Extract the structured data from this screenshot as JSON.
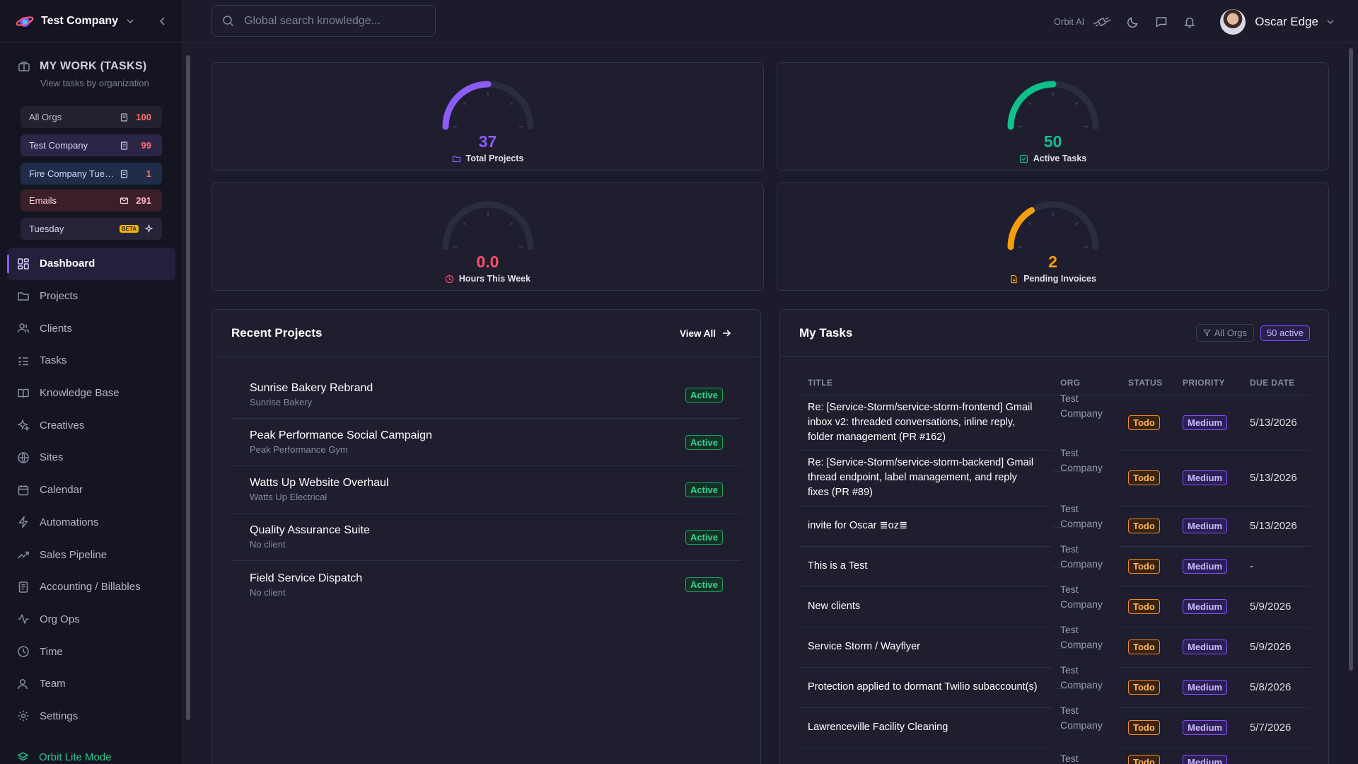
{
  "sidebar": {
    "company": "Test Company",
    "my_work": {
      "title": "MY WORK (TASKS)",
      "subtitle": "View tasks by organization"
    },
    "orgs": [
      {
        "label": "All Orgs",
        "count": "100"
      },
      {
        "label": "Test Company",
        "count": "99"
      },
      {
        "label": "Fire Company Tuesday",
        "count": "1"
      },
      {
        "label": "Emails",
        "count": "291"
      },
      {
        "label": "Tuesday",
        "badge": "BETA"
      }
    ],
    "nav": [
      {
        "label": "Dashboard",
        "icon": "grid-icon"
      },
      {
        "label": "Projects",
        "icon": "folder-icon"
      },
      {
        "label": "Clients",
        "icon": "users-icon"
      },
      {
        "label": "Tasks",
        "icon": "list-icon"
      },
      {
        "label": "Knowledge Base",
        "icon": "book-icon"
      },
      {
        "label": "Creatives",
        "icon": "sparkle-icon"
      },
      {
        "label": "Sites",
        "icon": "globe-icon"
      },
      {
        "label": "Calendar",
        "icon": "calendar-icon"
      },
      {
        "label": "Automations",
        "icon": "bolt-icon"
      },
      {
        "label": "Sales Pipeline",
        "icon": "trend-icon"
      },
      {
        "label": "Accounting / Billables",
        "icon": "receipt-icon"
      },
      {
        "label": "Org Ops",
        "icon": "activity-icon"
      },
      {
        "label": "Time",
        "icon": "clock-icon"
      },
      {
        "label": "Team",
        "icon": "user-icon"
      },
      {
        "label": "Settings",
        "icon": "gear-icon"
      }
    ],
    "lite_mode": "Orbit Lite Mode"
  },
  "header": {
    "search_placeholder": "Global search knowledge...",
    "orbit_ai": "Orbit AI",
    "user_name": "Oscar Edge"
  },
  "stats": {
    "total_projects": {
      "value": "37",
      "label": "Total Projects",
      "color": "#8b5cf6",
      "fraction": 0.5
    },
    "active_tasks": {
      "value": "50",
      "label": "Active Tasks",
      "color": "#10c08a",
      "fraction": 0.5
    },
    "hours_week": {
      "value": "0.0",
      "label": "Hours This Week",
      "color": "#ff4d6d",
      "fraction": 0
    },
    "pending_invoices": {
      "value": "2",
      "label": "Pending Invoices",
      "color": "#f59e0b",
      "fraction": 0.33
    }
  },
  "projects": {
    "title": "Recent Projects",
    "view_all": "View All",
    "items": [
      {
        "name": "Sunrise Bakery Rebrand",
        "client": "Sunrise Bakery",
        "status": "Active"
      },
      {
        "name": "Peak Performance Social Campaign",
        "client": "Peak Performance Gym",
        "status": "Active"
      },
      {
        "name": "Watts Up Website Overhaul",
        "client": "Watts Up Electrical",
        "status": "Active"
      },
      {
        "name": "Quality Assurance Suite",
        "client": "No client",
        "status": "Active"
      },
      {
        "name": "Field Service Dispatch",
        "client": "No client",
        "status": "Active"
      }
    ]
  },
  "tasks": {
    "title": "My Tasks",
    "filter": "All Orgs",
    "active_count": "50 active",
    "columns": [
      "TITLE",
      "ORG",
      "STATUS",
      "PRIORITY",
      "DUE DATE"
    ],
    "rows": [
      {
        "title": "Re: [Service-Storm/service-storm-frontend] Gmail inbox v2: threaded conversations, inline reply, folder management (PR #162)",
        "org": "Test Company",
        "status": "Todo",
        "priority": "Medium",
        "due": "5/13/2026"
      },
      {
        "title": "Re: [Service-Storm/service-storm-backend] Gmail thread endpoint, label management, and reply fixes (PR #89)",
        "org": "Test Company",
        "status": "Todo",
        "priority": "Medium",
        "due": "5/13/2026"
      },
      {
        "title": "invite for Oscar ≣oz≣",
        "org": "Test Company",
        "status": "Todo",
        "priority": "Medium",
        "due": "5/13/2026"
      },
      {
        "title": "This is a Test",
        "org": "Test Company",
        "status": "Todo",
        "priority": "Medium",
        "due": "-"
      },
      {
        "title": "New clients",
        "org": "Test Company",
        "status": "Todo",
        "priority": "Medium",
        "due": "5/9/2026"
      },
      {
        "title": "Service Storm / Wayflyer",
        "org": "Test Company",
        "status": "Todo",
        "priority": "Medium",
        "due": "5/9/2026"
      },
      {
        "title": "Protection applied to dormant Twilio subaccount(s)",
        "org": "Test Company",
        "status": "Todo",
        "priority": "Medium",
        "due": "5/8/2026"
      },
      {
        "title": "Lawrenceville Facility Cleaning",
        "org": "Test Company",
        "status": "Todo",
        "priority": "Medium",
        "due": "5/7/2026"
      },
      {
        "title": "",
        "org": "Test",
        "status": "Todo",
        "priority": "Medium",
        "due": ""
      }
    ]
  }
}
